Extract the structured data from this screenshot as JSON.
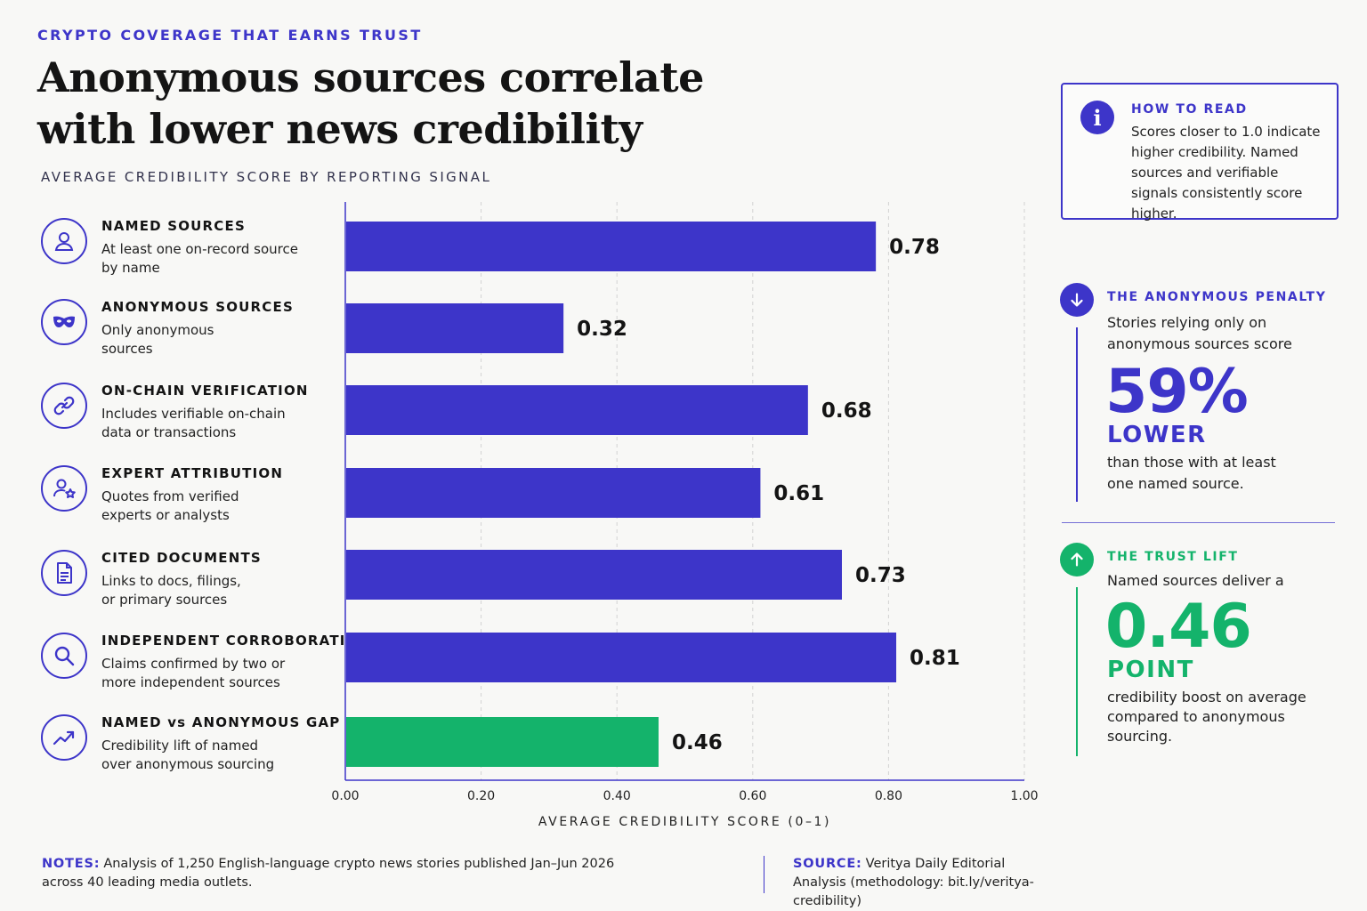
{
  "kicker": "CRYPTO COVERAGE THAT EARNS TRUST",
  "title": "Anonymous sources correlate with lower news credibility",
  "subtitle": "AVERAGE CREDIBILITY SCORE BY REPORTING SIGNAL",
  "categories": [
    {
      "name": "NAMED SOURCES",
      "desc": "At least one on-record source by name",
      "icon": "person-icon"
    },
    {
      "name": "ANONYMOUS SOURCES",
      "desc": "Only anonymous sources",
      "icon": "mask-icon"
    },
    {
      "name": "ON-CHAIN VERIFICATION",
      "desc": "Includes verifiable on-chain data or transactions",
      "icon": "link-icon"
    },
    {
      "name": "EXPERT ATTRIBUTION",
      "desc": "Quotes from verified experts or analysts",
      "icon": "expert-star-icon"
    },
    {
      "name": "CITED DOCUMENTS",
      "desc": "Links to docs, filings, or primary sources",
      "icon": "document-icon"
    },
    {
      "name": "INDEPENDENT CORROBORATION",
      "desc": "Claims confirmed by two or more independent sources",
      "icon": "magnifier-icon"
    },
    {
      "name": "NAMED vs ANONYMOUS GAP",
      "desc": "Credibility lift of named over anonymous sourcing",
      "icon": "trend-up-icon"
    }
  ],
  "chart_data": {
    "type": "bar",
    "orientation": "horizontal",
    "categories": [
      "NAMED SOURCES",
      "ANONYMOUS SOURCES",
      "ON-CHAIN VERIFICATION",
      "EXPERT ATTRIBUTION",
      "CITED DOCUMENTS",
      "INDEPENDENT CORROBORATION",
      "NAMED vs ANONYMOUS GAP"
    ],
    "values": [
      0.78,
      0.32,
      0.68,
      0.61,
      0.73,
      0.81,
      0.46
    ],
    "value_labels": [
      "0.78",
      "0.32",
      "0.68",
      "0.61",
      "0.73",
      "0.81",
      "0.46"
    ],
    "highlight_index": 6,
    "colors": {
      "bar": "#3d35c9",
      "highlight": "#14b36b"
    },
    "xlim": [
      0,
      1
    ],
    "xticks": [
      0,
      0.2,
      0.4,
      0.6,
      0.8,
      1.0
    ],
    "xtick_labels": [
      "0.00",
      "0.20",
      "0.40",
      "0.60",
      "0.80",
      "1.00"
    ],
    "xlabel": "AVERAGE CREDIBILITY SCORE (0–1)",
    "grid": "vertical dashed"
  },
  "how_to_read": {
    "heading": "HOW TO READ",
    "text": "Scores closer to 1.0 indicate higher credibility. Named sources and verifiable signals consistently score higher."
  },
  "penalty": {
    "heading": "THE ANONYMOUS PENALTY",
    "intro": "Stories relying only on anonymous sources score",
    "value": "59%",
    "unit": "LOWER",
    "outro": "than those with at least one named source.",
    "color": "#3d35c9"
  },
  "lift": {
    "heading": "THE TRUST LIFT",
    "intro": "Named sources deliver a",
    "value": "0.46",
    "unit": "POINT",
    "outro": "credibility boost on average compared to anonymous sourcing.",
    "color": "#14b36b"
  },
  "notes": {
    "label": "NOTES:",
    "text": "Analysis of 1,250 English-language crypto news stories published Jan–Jun 2026 across 40 leading media outlets."
  },
  "source": {
    "label": "SOURCE:",
    "text": "Veritya Daily Editorial Analysis (methodology: bit.ly/veritya-credibility)"
  }
}
